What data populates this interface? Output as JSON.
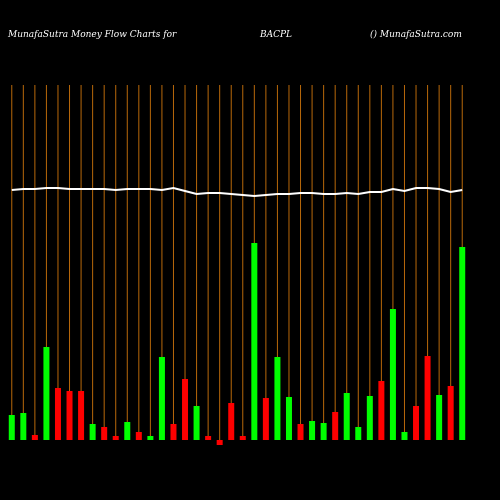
{
  "chart_data": {
    "type": "bar",
    "title": "MunafaSutra  Money Flow  Charts for",
    "symbol": "BACPL",
    "source": "() MunafaSutra.com",
    "categories": [
      null,
      null,
      null,
      null,
      null,
      null,
      null,
      null,
      null,
      null,
      null,
      null,
      null,
      null,
      null,
      null,
      null,
      null,
      null,
      null,
      null,
      null,
      null,
      null,
      null,
      null,
      null,
      null,
      null,
      null,
      null,
      null,
      null,
      null,
      null,
      null,
      null,
      null,
      null,
      null
    ],
    "values": [
      25,
      27,
      5,
      93,
      52,
      49,
      49,
      16,
      13,
      4,
      18,
      8,
      4,
      83,
      16,
      61,
      34,
      4,
      -5,
      37,
      4,
      197,
      42,
      83,
      43,
      16,
      19,
      17,
      28,
      47,
      13,
      44,
      59,
      131,
      8,
      34,
      84,
      45,
      54,
      193
    ],
    "colors": [
      "#00ff00",
      "#00ff00",
      "#ff0000",
      "#00ff00",
      "#ff0000",
      "#ff0000",
      "#ff0000",
      "#00ff00",
      "#ff0000",
      "#ff0000",
      "#00ff00",
      "#ff0000",
      "#00ff00",
      "#00ff00",
      "#ff0000",
      "#ff0000",
      "#00ff00",
      "#ff0000",
      "#ff0000",
      "#ff0000",
      "#ff0000",
      "#00ff00",
      "#ff0000",
      "#00ff00",
      "#00ff00",
      "#ff0000",
      "#00ff00",
      "#00ff00",
      "#ff0000",
      "#00ff00",
      "#00ff00",
      "#00ff00",
      "#ff0000",
      "#00ff00",
      "#00ff00",
      "#ff0000",
      "#ff0000",
      "#00ff00",
      "#ff0000",
      "#00ff00"
    ],
    "line": {
      "color": "#ffffff",
      "values": [
        250,
        251,
        251,
        252,
        252,
        251,
        251,
        251,
        251,
        250,
        251,
        251,
        251,
        250,
        252,
        249,
        246,
        247,
        247,
        246,
        245,
        244,
        245,
        246,
        246,
        247,
        247,
        246,
        246,
        247,
        246,
        248,
        248,
        251,
        249,
        252,
        252,
        251,
        248,
        250
      ]
    },
    "grid_color": "#b8680a",
    "ylim": [
      0,
      260
    ]
  }
}
